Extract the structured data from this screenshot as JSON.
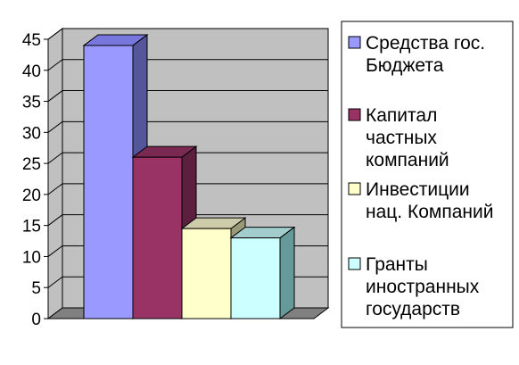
{
  "chart_data": {
    "type": "bar",
    "style": "3d-clustered-columns",
    "title": "",
    "xlabel": "",
    "ylabel": "",
    "ylim": [
      0,
      45
    ],
    "yticks": [
      0,
      5,
      10,
      15,
      20,
      25,
      30,
      35,
      40,
      45
    ],
    "grid": true,
    "legend_position": "right",
    "series": [
      {
        "name": "Средства гос. Бюджета",
        "legend_lines": [
          "Средства гос.",
          "Бюджета"
        ],
        "value": 44,
        "color": "#9999ff",
        "top_color": "#7777dd",
        "side_color": "#555599"
      },
      {
        "name": "Капитал частных компаний",
        "legend_lines": [
          "Капитал",
          "частных",
          "компаний"
        ],
        "value": 26,
        "color": "#993366",
        "top_color": "#7a2952",
        "side_color": "#5c1f3d"
      },
      {
        "name": "Инвестиции нац. Компаний",
        "legend_lines": [
          "Инвестиции",
          "нац. Компаний"
        ],
        "value": 14.5,
        "color": "#ffffcc",
        "top_color": "#ccccaa",
        "side_color": "#999977"
      },
      {
        "name": "Гранты иностранных государств",
        "legend_lines": [
          "Гранты",
          "иностранных",
          "государств"
        ],
        "value": 13,
        "color": "#ccffff",
        "top_color": "#a3cccc",
        "side_color": "#669999"
      }
    ],
    "colors": {
      "wall": "#c0c0c0",
      "floor": "#808080",
      "grid": "#000000"
    }
  }
}
